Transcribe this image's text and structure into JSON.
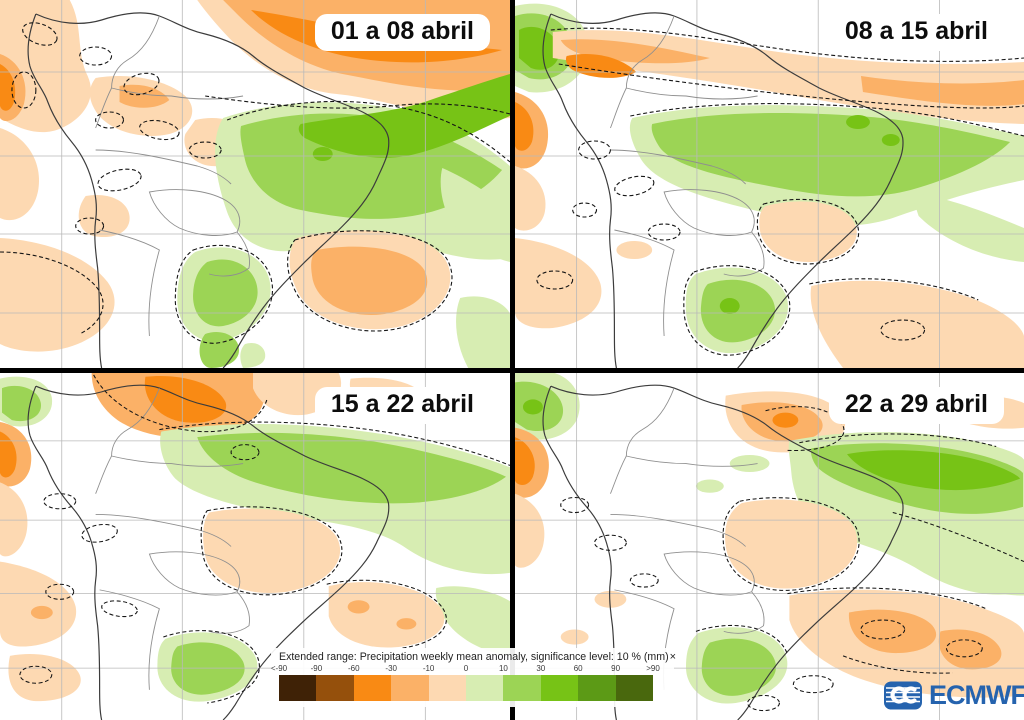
{
  "panels": [
    {
      "label": "01 a 08 abril"
    },
    {
      "label": "08 a 15 abril"
    },
    {
      "label": "15 a 22 abril"
    },
    {
      "label": "22 a 29 abril"
    }
  ],
  "legend": {
    "title": "Extended range: Precipitation weekly mean anomaly, significance level: 10 % (mm)",
    "close": "×",
    "ticks": [
      "<-90",
      "-90",
      "-60",
      "-30",
      "-10",
      "0",
      "10",
      "30",
      "60",
      "90",
      ">90"
    ],
    "palette": [
      "#3f2206",
      "#95500c",
      "#f98a14",
      "#fbb167",
      "#fdd9b2",
      "#d7edb2",
      "#9cd455",
      "#77c316",
      "#5c9a16",
      "#49680d"
    ]
  },
  "branding": {
    "logo_text": "ECMWF",
    "logo_color": "#2563ae"
  },
  "map_style": {
    "grid_color": "#b9b9b9",
    "coast_color": "#3c3c3c",
    "border_color": "#8f8f8f",
    "contour_color": "#151515",
    "background": "#ffffff"
  }
}
